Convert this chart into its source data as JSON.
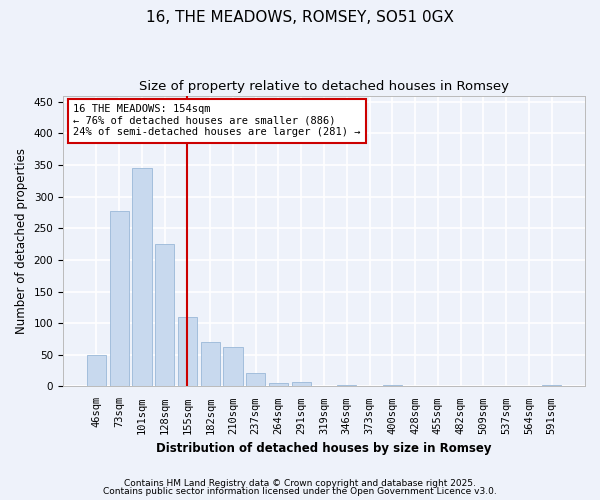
{
  "title": "16, THE MEADOWS, ROMSEY, SO51 0GX",
  "subtitle": "Size of property relative to detached houses in Romsey",
  "xlabel": "Distribution of detached houses by size in Romsey",
  "ylabel": "Number of detached properties",
  "categories": [
    "46sqm",
    "73sqm",
    "101sqm",
    "128sqm",
    "155sqm",
    "182sqm",
    "210sqm",
    "237sqm",
    "264sqm",
    "291sqm",
    "319sqm",
    "346sqm",
    "373sqm",
    "400sqm",
    "428sqm",
    "455sqm",
    "482sqm",
    "509sqm",
    "537sqm",
    "564sqm",
    "591sqm"
  ],
  "values": [
    50,
    278,
    345,
    226,
    110,
    71,
    63,
    22,
    5,
    7,
    0,
    3,
    0,
    2,
    0,
    0,
    0,
    0,
    0,
    0,
    2
  ],
  "bar_color": "#c8d9ee",
  "bar_edge_color": "#9ab8d8",
  "ylim": [
    0,
    460
  ],
  "yticks": [
    0,
    50,
    100,
    150,
    200,
    250,
    300,
    350,
    400,
    450
  ],
  "vline_index": 4,
  "vline_color": "#cc0000",
  "ann_line1": "16 THE MEADOWS: 154sqm",
  "ann_line2": "← 76% of detached houses are smaller (886)",
  "ann_line3": "24% of semi-detached houses are larger (281) →",
  "annotation_box_color": "#cc0000",
  "footer1": "Contains HM Land Registry data © Crown copyright and database right 2025.",
  "footer2": "Contains public sector information licensed under the Open Government Licence v3.0.",
  "background_color": "#eef2fa",
  "plot_bg_color": "#eef2fa",
  "grid_color": "#ffffff",
  "title_fontsize": 11,
  "subtitle_fontsize": 9.5,
  "axis_label_fontsize": 8.5,
  "tick_fontsize": 7.5,
  "annotation_fontsize": 7.5,
  "footer_fontsize": 6.5
}
